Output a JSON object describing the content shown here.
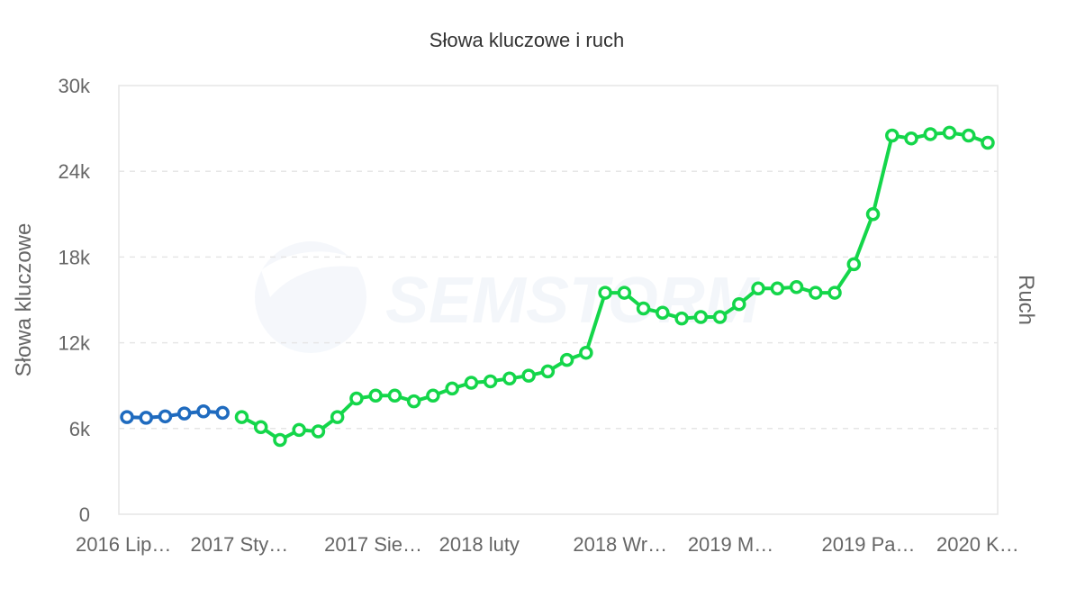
{
  "chart_data": {
    "type": "line",
    "title": "Słowa kluczowe i ruch",
    "ylabel": "Słowa kluczowe",
    "y2label": "Ruch",
    "watermark": "SEMSTORM",
    "ylim": [
      0,
      30000
    ],
    "yticks": [
      {
        "value": 0,
        "label": "0"
      },
      {
        "value": 6000,
        "label": "6k"
      },
      {
        "value": 12000,
        "label": "12k"
      },
      {
        "value": 18000,
        "label": "18k"
      },
      {
        "value": 24000,
        "label": "24k"
      },
      {
        "value": 30000,
        "label": "30k"
      }
    ],
    "xtick_labels": [
      {
        "index": 0,
        "label": "2016 Lip…"
      },
      {
        "index": 6,
        "label": "2017 Sty…"
      },
      {
        "index": 13,
        "label": "2017 Sie…"
      },
      {
        "index": 19,
        "label": "2018 luty"
      },
      {
        "index": 26,
        "label": "2018 Wr…"
      },
      {
        "index": 32,
        "label": "2019 M…"
      },
      {
        "index": 39,
        "label": "2019 Pa…"
      },
      {
        "index": 45,
        "label": "2020 K…"
      }
    ],
    "grid": true,
    "series": [
      {
        "color": "#1f6bbf",
        "start_index": 0,
        "values": [
          6800,
          6750,
          6850,
          7050,
          7200,
          7100
        ]
      },
      {
        "color": "#14d64a",
        "start_index": 6,
        "values": [
          6800,
          6100,
          5200,
          5900,
          5800,
          6800,
          8100,
          8300,
          8300,
          7900,
          8300,
          8800,
          9200,
          9300,
          9500,
          9700,
          10000,
          10800,
          11300,
          15500,
          15500,
          14400,
          14100,
          13700,
          13800,
          13800,
          14700,
          15800,
          15800,
          15900,
          15500,
          15500,
          17500,
          21000,
          26500,
          26300,
          26600,
          26700,
          26500,
          26000
        ]
      }
    ]
  }
}
